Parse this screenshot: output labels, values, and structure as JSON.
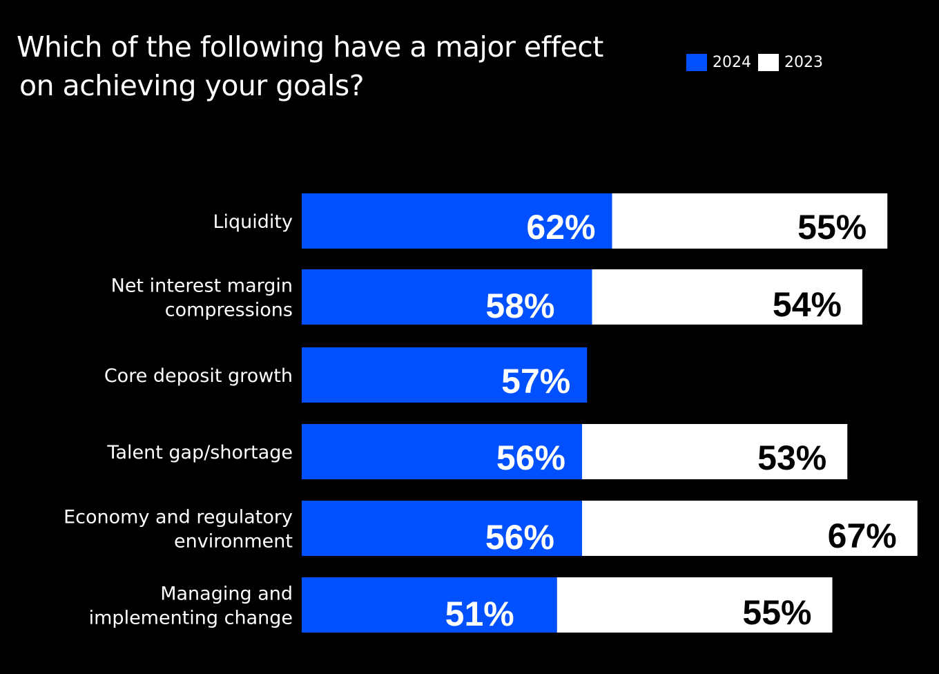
{
  "chart_data": {
    "type": "bar",
    "orientation": "horizontal",
    "stacked": true,
    "title": "Which of the following have a major effect on achieving your goals?",
    "title_lines": [
      "Which of the following have a major effect",
      "on achieving your goals?"
    ],
    "xlabel": "",
    "ylabel": "",
    "grid": false,
    "legend_position": "top-right",
    "categories": [
      [
        "Liquidity"
      ],
      [
        "Net interest margin",
        "compressions"
      ],
      [
        "Core deposit growth"
      ],
      [
        "Talent gap/shortage"
      ],
      [
        "Economy and regulatory",
        "environment"
      ],
      [
        "Managing and",
        "implementing change"
      ]
    ],
    "series": [
      {
        "name": "2024",
        "color": "#0050ff",
        "label_color": "#ffffff",
        "values": [
          62,
          58,
          57,
          56,
          56,
          51
        ],
        "labels": [
          "62%",
          "58%",
          "57%",
          "56%",
          "56%",
          "51%"
        ]
      },
      {
        "name": "2023",
        "color": "#ffffff",
        "label_color": "#000000",
        "values": [
          55,
          54,
          null,
          53,
          67,
          55
        ],
        "labels": [
          "55%",
          "54%",
          "",
          "53%",
          "67%",
          "55%"
        ]
      }
    ]
  },
  "legend": {
    "items": [
      {
        "label": "2024",
        "color": "#0050ff"
      },
      {
        "label": "2023",
        "color": "#ffffff"
      }
    ]
  }
}
